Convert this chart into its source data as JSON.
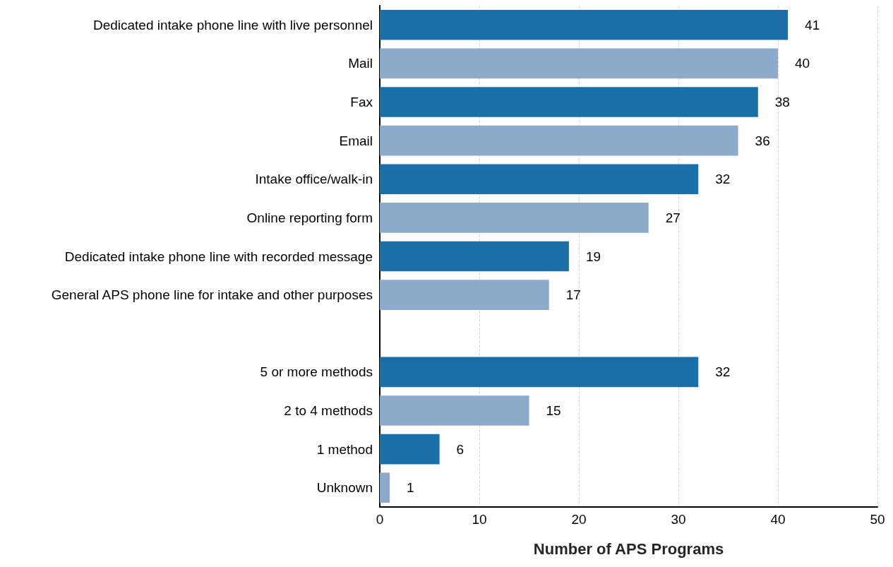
{
  "chart_data": {
    "type": "bar",
    "orientation": "horizontal",
    "xlabel": "Number of APS Programs",
    "categories": [
      "Dedicated intake phone line with live personnel",
      "Mail",
      "Fax",
      "Email",
      "Intake office/walk-in",
      "Online reporting form",
      "Dedicated intake phone line with recorded message",
      "General APS phone line for intake and other purposes",
      null,
      "5 or more methods",
      "2 to 4 methods",
      "1 method",
      "Unknown"
    ],
    "values": [
      41,
      40,
      38,
      36,
      32,
      27,
      19,
      17,
      null,
      32,
      15,
      6,
      1
    ],
    "colors": [
      "#1a70a6",
      "#8eaacb",
      "#1a70a6",
      "#8eaacb",
      "#1a70a6",
      "#8eaacb",
      "#1a70a6",
      "#8eaacb",
      null,
      "#1a70a6",
      "#8eaacb",
      "#1a70a6",
      "#8eaacb"
    ],
    "xlim": [
      0,
      50
    ],
    "xticks": [
      0,
      10,
      20,
      30,
      40,
      50
    ],
    "grid": "x",
    "data_labels": true
  }
}
